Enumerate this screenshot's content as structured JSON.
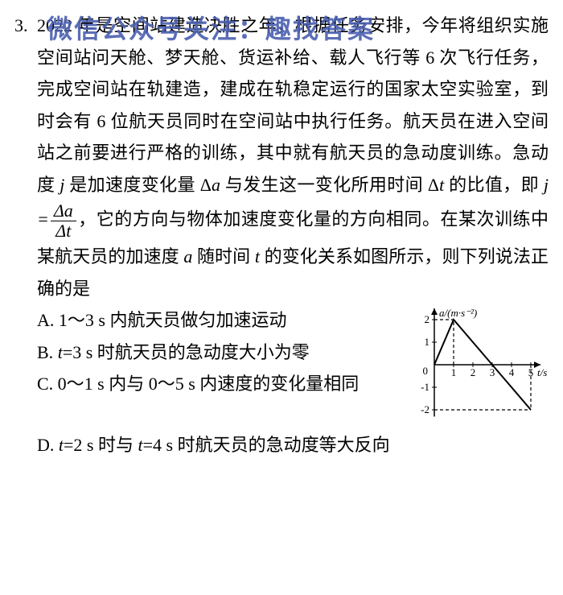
{
  "question_number": "3.",
  "watermark": "微信公众号关注：趣找答案",
  "paragraph": "2022 年是空间站建造决胜之年，根据任务安排，今年将组织实施空间站问天舱、梦天舱、货运补给、载人飞行等 6 次飞行任务，完成空间站在轨建造，建成在轨稳定运行的国家太空实验室，到时会有 6 位航天员同时在空间站中执行任务。航天员在进入空间站之前要进行严格的训练，其中就有航天员的急动度训练。急动度 ",
  "paragraph_j": "j",
  "paragraph2": " 是加速度变化量 Δ",
  "paragraph_a": "a",
  "paragraph3": " 与发生这一变化所用时间 Δ",
  "paragraph_t": "t",
  "paragraph4": " 的比值，即 ",
  "frac_lhs": "j =",
  "frac_num": "Δa",
  "frac_den": "Δt",
  "paragraph5": "，它的方向与物体加速度变化量的方向相同。在某次训练中某航天员的加速度 ",
  "paragraph_a2": "a",
  "paragraph6": " 随时间 ",
  "paragraph_t2": "t",
  "paragraph7": " 的变化关系如图所示，则下列说法正确的是",
  "options": {
    "A": "A. 1～3 s 内航天员做匀加速运动",
    "B1": "B. ",
    "B_t": "t",
    "B2": "=3 s 时航天员的急动度大小为零",
    "C": "C. 0～1 s 内与 0～5 s 内速度的变化量相同",
    "D1": "D. ",
    "D_t1": "t",
    "D2": "=2 s 时与 ",
    "D_t2": "t",
    "D3": "=4 s 时航天员的急动度等大反向"
  },
  "chart": {
    "type": "line",
    "x_label": "t/s",
    "y_label": "a/(m·s⁻²)",
    "x_ticks": [
      1,
      2,
      3,
      4,
      5
    ],
    "y_ticks": [
      -2,
      -1,
      0,
      1,
      2
    ],
    "xlim": [
      0,
      5.5
    ],
    "ylim": [
      -2.3,
      2.5
    ],
    "points": [
      [
        0,
        0
      ],
      [
        1,
        2
      ],
      [
        5,
        -2
      ]
    ],
    "dash_lines": [
      {
        "from": [
          1,
          0
        ],
        "to": [
          1,
          2
        ]
      },
      {
        "from": [
          0,
          2
        ],
        "to": [
          1,
          2
        ]
      },
      {
        "from": [
          5,
          0
        ],
        "to": [
          5,
          -2
        ]
      },
      {
        "from": [
          0,
          -2
        ],
        "to": [
          5,
          -2
        ]
      }
    ],
    "line_color": "#000000",
    "bg_color": "#ffffff",
    "axis_color": "#000000",
    "font_size": 13
  }
}
